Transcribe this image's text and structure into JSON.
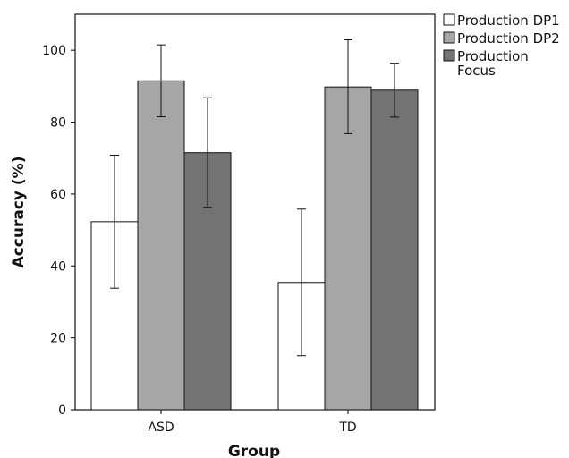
{
  "chart_data": {
    "type": "bar",
    "title": "",
    "xlabel": "Group",
    "ylabel": "Accuracy (%)",
    "categories": [
      "ASD",
      "TD"
    ],
    "ylim": [
      0,
      110
    ],
    "yticks": [
      0,
      20,
      40,
      60,
      80,
      100
    ],
    "grid": false,
    "legend_position": "right",
    "series": [
      {
        "name": "Production DP1",
        "color": "#ffffff",
        "values": [
          52.3,
          35.4
        ],
        "error_low": [
          33.8,
          15.0
        ],
        "error_high": [
          70.8,
          55.8
        ]
      },
      {
        "name": "Production DP2",
        "color": "#a6a6a6",
        "values": [
          91.5,
          89.8
        ],
        "error_low": [
          81.5,
          76.8
        ],
        "error_high": [
          101.5,
          102.9
        ]
      },
      {
        "name": "Production Focus",
        "color": "#737373",
        "values": [
          71.5,
          88.9
        ],
        "error_low": [
          56.3,
          81.4
        ],
        "error_high": [
          86.8,
          96.4
        ]
      }
    ]
  }
}
